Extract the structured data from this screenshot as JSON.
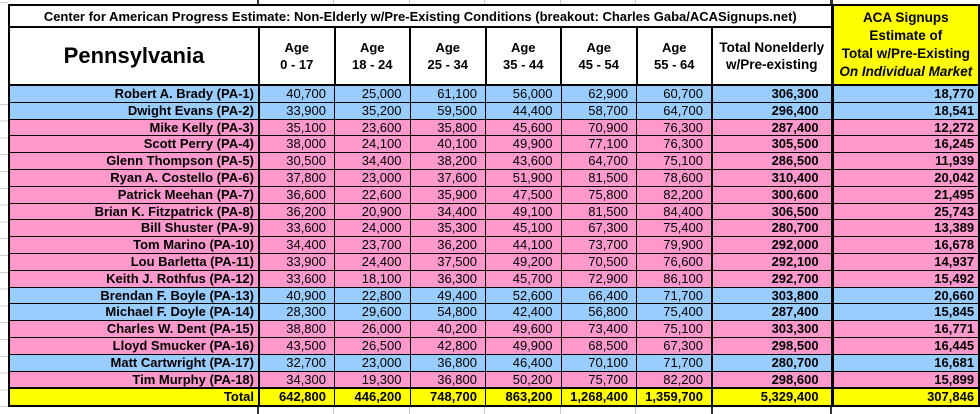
{
  "chart_data": {
    "type": "table",
    "title": "Center for American Progress Estimate: Non-Elderly w/Pre-Existing Conditions (breakout: Charles Gaba/ACASignups.net)",
    "state_label": "Pennsylvania",
    "age_columns": [
      {
        "label": "Age",
        "range": "0 - 17"
      },
      {
        "label": "Age",
        "range": "18 - 24"
      },
      {
        "label": "Age",
        "range": "25 - 34"
      },
      {
        "label": "Age",
        "range": "35 - 44"
      },
      {
        "label": "Age",
        "range": "45 - 54"
      },
      {
        "label": "Age",
        "range": "55 - 64"
      }
    ],
    "total_column": {
      "line1": "Total Nonelderly",
      "line2": "w/Pre-existing"
    },
    "aca_column": {
      "line1": "ACA Signups",
      "line2": "Estimate of",
      "line3": "Total w/Pre-Existing",
      "line4": "On Individual Market"
    },
    "rows": [
      {
        "name": "Robert A. Brady (PA-1)",
        "highlight": "blue",
        "values": [
          "40,700",
          "25,000",
          "61,100",
          "56,000",
          "62,900",
          "60,700"
        ],
        "total": "306,300",
        "aca": "18,770"
      },
      {
        "name": "Dwight Evans (PA-2)",
        "highlight": "blue",
        "values": [
          "33,900",
          "35,200",
          "59,500",
          "44,400",
          "58,700",
          "64,700"
        ],
        "total": "296,400",
        "aca": "18,541"
      },
      {
        "name": "Mike Kelly (PA-3)",
        "highlight": "pink",
        "values": [
          "35,100",
          "23,600",
          "35,800",
          "45,600",
          "70,900",
          "76,300"
        ],
        "total": "287,400",
        "aca": "12,272"
      },
      {
        "name": "Scott Perry (PA-4)",
        "highlight": "pink",
        "values": [
          "38,000",
          "24,100",
          "40,100",
          "49,900",
          "77,100",
          "76,300"
        ],
        "total": "305,500",
        "aca": "16,245"
      },
      {
        "name": "Glenn Thompson (PA-5)",
        "highlight": "pink",
        "values": [
          "30,500",
          "34,400",
          "38,200",
          "43,600",
          "64,700",
          "75,100"
        ],
        "total": "286,500",
        "aca": "11,939"
      },
      {
        "name": "Ryan A. Costello (PA-6)",
        "highlight": "pink",
        "values": [
          "37,800",
          "23,000",
          "37,600",
          "51,900",
          "81,500",
          "78,600"
        ],
        "total": "310,400",
        "aca": "20,042"
      },
      {
        "name": "Patrick Meehan (PA-7)",
        "highlight": "pink",
        "values": [
          "36,600",
          "22,600",
          "35,900",
          "47,500",
          "75,800",
          "82,200"
        ],
        "total": "300,600",
        "aca": "21,495"
      },
      {
        "name": "Brian K. Fitzpatrick (PA-8)",
        "highlight": "pink",
        "values": [
          "36,200",
          "20,900",
          "34,400",
          "49,100",
          "81,500",
          "84,400"
        ],
        "total": "306,500",
        "aca": "25,743"
      },
      {
        "name": "Bill Shuster (PA-9)",
        "highlight": "pink",
        "values": [
          "33,600",
          "24,000",
          "35,300",
          "45,100",
          "67,300",
          "75,400"
        ],
        "total": "280,700",
        "aca": "13,389"
      },
      {
        "name": "Tom Marino (PA-10)",
        "highlight": "pink",
        "values": [
          "34,400",
          "23,700",
          "36,200",
          "44,100",
          "73,700",
          "79,900"
        ],
        "total": "292,000",
        "aca": "16,678"
      },
      {
        "name": "Lou Barletta (PA-11)",
        "highlight": "pink",
        "values": [
          "33,900",
          "24,400",
          "37,500",
          "49,200",
          "70,500",
          "76,600"
        ],
        "total": "292,100",
        "aca": "14,937"
      },
      {
        "name": "Keith J. Rothfus (PA-12)",
        "highlight": "pink",
        "values": [
          "33,600",
          "18,100",
          "36,300",
          "45,700",
          "72,900",
          "86,100"
        ],
        "total": "292,700",
        "aca": "15,492"
      },
      {
        "name": "Brendan F. Boyle (PA-13)",
        "highlight": "blue",
        "values": [
          "40,900",
          "22,800",
          "49,400",
          "52,600",
          "66,400",
          "71,700"
        ],
        "total": "303,800",
        "aca": "20,660"
      },
      {
        "name": "Michael F. Doyle (PA-14)",
        "highlight": "blue",
        "values": [
          "28,300",
          "29,600",
          "54,800",
          "42,400",
          "56,800",
          "75,400"
        ],
        "total": "287,400",
        "aca": "15,845"
      },
      {
        "name": "Charles W. Dent (PA-15)",
        "highlight": "pink",
        "values": [
          "38,800",
          "26,000",
          "40,200",
          "49,600",
          "73,400",
          "75,100"
        ],
        "total": "303,300",
        "aca": "16,771"
      },
      {
        "name": "Lloyd Smucker (PA-16)",
        "highlight": "pink",
        "values": [
          "43,500",
          "26,500",
          "42,800",
          "49,900",
          "68,500",
          "67,300"
        ],
        "total": "298,500",
        "aca": "16,445"
      },
      {
        "name": "Matt Cartwright (PA-17)",
        "highlight": "blue",
        "values": [
          "32,700",
          "23,000",
          "36,800",
          "46,400",
          "70,100",
          "71,700"
        ],
        "total": "280,700",
        "aca": "16,681"
      },
      {
        "name": "Tim Murphy (PA-18)",
        "highlight": "pink",
        "values": [
          "34,300",
          "19,300",
          "36,800",
          "50,200",
          "75,700",
          "82,200"
        ],
        "total": "298,600",
        "aca": "15,899"
      }
    ],
    "total_row": {
      "label": "Total",
      "values": [
        "642,800",
        "446,200",
        "748,700",
        "863,200",
        "1,268,400",
        "1,359,700"
      ],
      "total": "5,329,400",
      "aca": "307,846"
    },
    "colors": {
      "row_blue": "#99CCFF",
      "row_pink": "#FF99CC",
      "highlight_yellow": "#FFFF00",
      "border": "#000000"
    }
  }
}
